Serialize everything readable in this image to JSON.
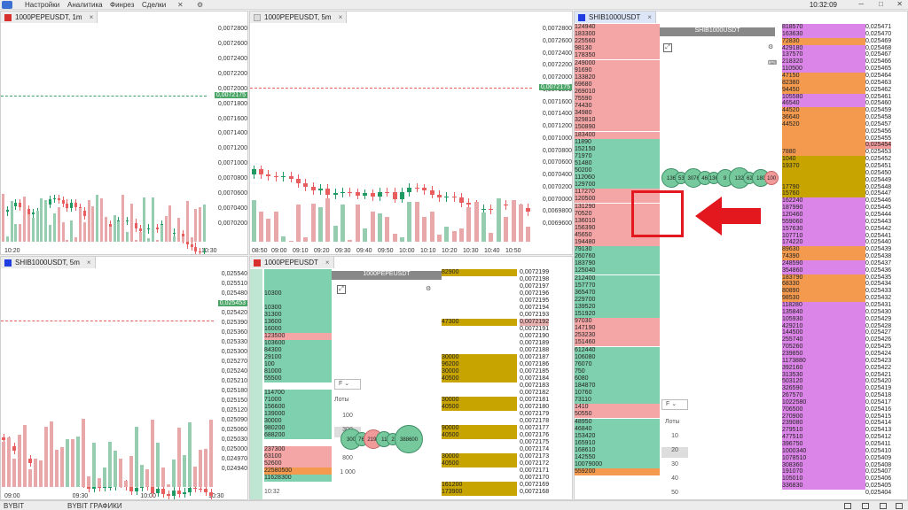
{
  "menu": {
    "items": [
      "Настройки",
      "Аналитика",
      "Финрез",
      "Сделки"
    ],
    "clock": "10:32:09",
    "window": [
      "─",
      "□",
      "✕"
    ]
  },
  "colors": {
    "green": "#1e9a62",
    "red": "#e85d5d",
    "vol_green": "#96cdb1",
    "vol_red": "#e8a8aa",
    "ask_bg": "#f4a6a6",
    "bid_bg": "#7fd0ae",
    "large_bid": "#c7a400",
    "orange": "#f39a4e",
    "violet": "#dc85e8"
  },
  "panels": {
    "chart1": {
      "title": "1000PEPEUSDT, 1m",
      "close": "×",
      "prices": [
        "0,0072800",
        "0,0072600",
        "0,0072400",
        "0,0072200",
        "0,0072000",
        "0,0071800",
        "0,0071600",
        "0,0071400",
        "0,0071200",
        "0,0071000",
        "0,0070800",
        "0,0070600",
        "0,0070400",
        "0,0070200"
      ],
      "current": "0,0072175",
      "times": [
        "10:20",
        "10:30"
      ]
    },
    "chart2": {
      "title": "1000PEPEUSDT, 5m",
      "close": "×",
      "prices": [
        "0,0072800",
        "0,0072600",
        "0,0072400",
        "0,0072200",
        "0,0072000",
        "0,0071800",
        "0,0071600",
        "0,0071400",
        "0,0071200",
        "0,0071000",
        "0,0070800",
        "0,0070600",
        "0,0070400",
        "0,0070200",
        "0,0070000",
        "0,0069800",
        "0,0069600"
      ],
      "current": "0,0072175",
      "times": [
        "08:50",
        "09:00",
        "09:10",
        "09:20",
        "09:30",
        "09:40",
        "09:50",
        "10:00",
        "10:10",
        "10:20",
        "10:30",
        "10:40",
        "10:50"
      ]
    },
    "chart3": {
      "title": "SHIB1000USDT, 5m",
      "close": "×",
      "prices": [
        "0,025540",
        "0,025510",
        "0,025480",
        "0,025453",
        "0,025420",
        "0,025390",
        "0,025360",
        "0,025330",
        "0,025300",
        "0,025270",
        "0,025240",
        "0,025210",
        "0,025180",
        "0,025150",
        "0,025120",
        "0,025090",
        "0,025060",
        "0,025030",
        "0,025000",
        "0,024970",
        "0,024940"
      ],
      "current": "0,025453",
      "times": [
        "09:00",
        "09:30",
        "10:00",
        "10:30"
      ]
    },
    "dom1": {
      "title": "1000PEPEUSDT",
      "header": "1000PEPEUSDT",
      "close": "×",
      "lots_label": "Лоты",
      "filter": "F",
      "lots": [
        "100",
        "300",
        "500",
        "800",
        "1 000"
      ],
      "selected_lot": "300",
      "time": "10:32",
      "left_sizes": [
        {
          "v": "",
          "t": "g"
        },
        {
          "v": "",
          "t": "g"
        },
        {
          "v": "",
          "t": "g"
        },
        {
          "v": "10300",
          "t": "g"
        },
        {
          "v": "",
          "t": "g"
        },
        {
          "v": "10300",
          "t": "g"
        },
        {
          "v": "31300",
          "t": "g"
        },
        {
          "v": "13600",
          "t": "g"
        },
        {
          "v": "16000",
          "t": "g"
        },
        {
          "v": "123500",
          "t": "r"
        },
        {
          "v": "103600",
          "t": "g"
        },
        {
          "v": "84300",
          "t": "g"
        },
        {
          "v": "29100",
          "t": "g"
        },
        {
          "v": "100",
          "t": "g"
        },
        {
          "v": "81000",
          "t": "g"
        },
        {
          "v": "55500",
          "t": "g"
        },
        {
          "v": "",
          "t": "w"
        },
        {
          "v": "114700",
          "t": "g"
        },
        {
          "v": "71000",
          "t": "g"
        },
        {
          "v": "156600",
          "t": "g"
        },
        {
          "v": "139000",
          "t": "g"
        },
        {
          "v": "30000",
          "t": "g"
        },
        {
          "v": "980200",
          "t": "g"
        },
        {
          "v": "688200",
          "t": "g"
        },
        {
          "v": "",
          "t": "w"
        },
        {
          "v": "237300",
          "t": "r"
        },
        {
          "v": "63100",
          "t": "r"
        },
        {
          "v": "52600",
          "t": "r"
        },
        {
          "v": "22580500",
          "t": "o"
        },
        {
          "v": "11628300",
          "t": "g"
        }
      ],
      "right_sizes": [
        {
          "v": "82900",
          "t": "y"
        },
        {
          "v": "",
          "t": "w"
        },
        {
          "v": "",
          "t": "w"
        },
        {
          "v": "",
          "t": "w"
        },
        {
          "v": "",
          "t": "w"
        },
        {
          "v": "",
          "t": "w"
        },
        {
          "v": "",
          "t": "w"
        },
        {
          "v": "47300",
          "t": "y"
        },
        {
          "v": "",
          "t": "w"
        },
        {
          "v": "",
          "t": "w"
        },
        {
          "v": "",
          "t": "w"
        },
        {
          "v": "",
          "t": "w"
        },
        {
          "v": "30000",
          "t": "y"
        },
        {
          "v": "96200",
          "t": "y"
        },
        {
          "v": "30000",
          "t": "y"
        },
        {
          "v": "40500",
          "t": "y"
        },
        {
          "v": "",
          "t": "w"
        },
        {
          "v": "",
          "t": "w"
        },
        {
          "v": "30000",
          "t": "y"
        },
        {
          "v": "40500",
          "t": "y"
        },
        {
          "v": "",
          "t": "w"
        },
        {
          "v": "",
          "t": "w"
        },
        {
          "v": "90000",
          "t": "y"
        },
        {
          "v": "40500",
          "t": "y"
        },
        {
          "v": "",
          "t": "w"
        },
        {
          "v": "",
          "t": "w"
        },
        {
          "v": "30000",
          "t": "y"
        },
        {
          "v": "40500",
          "t": "y"
        },
        {
          "v": "",
          "t": "w"
        },
        {
          "v": "",
          "t": "w"
        },
        {
          "v": "161200",
          "t": "y"
        },
        {
          "v": "173900",
          "t": "y"
        }
      ],
      "prices": [
        "0,0072199",
        "0,0072198",
        "0,0072197",
        "0,0072196",
        "0,0072195",
        "0,0072194",
        "0,0072193",
        "0,0072192",
        "0,0072191",
        "0,0072190",
        "0,0072189",
        "0,0072188",
        "0,0072187",
        "0,0072186",
        "0,0072185",
        "0,0072184",
        "0,0072183",
        "0,0072182",
        "0,0072181",
        "0,0072180",
        "0,0072179",
        "0,0072178",
        "0,0072177",
        "0,0072176",
        "0,0072175",
        "0,0072174",
        "0,0072173",
        "0,0072172",
        "0,0072171",
        "0,0072170",
        "0,0072169",
        "0,0072168"
      ],
      "bubbles": [
        {
          "label": "300",
          "type": "g"
        },
        {
          "label": "76",
          "type": "g"
        },
        {
          "label": "2190",
          "type": "r"
        },
        {
          "label": "11",
          "type": "g"
        },
        {
          "label": "2",
          "type": "g"
        },
        {
          "label": "388600",
          "type": "g"
        }
      ]
    },
    "dom2": {
      "title": "SHIB1000USDT",
      "header": "SHIB1000USDT",
      "close": "×",
      "lots_label": "Лоты",
      "filter": "F",
      "lots": [
        "10",
        "20",
        "30",
        "40",
        "50"
      ],
      "selected_lot": "20",
      "left_sizes": [
        "124940",
        "183300",
        "225560",
        "98130",
        "178350",
        "249000",
        "91690",
        "133820",
        "69680",
        "269010",
        "75590",
        "74430",
        "34980",
        "329810",
        "150890",
        "183400",
        "11890",
        "152150",
        "71970",
        "51480",
        "50200",
        "112060",
        "129700",
        "117270",
        "120500",
        "131290",
        "70520",
        "136010",
        "156390",
        "45650",
        "194480",
        "79130",
        "260760",
        "183790",
        "125040",
        "212400",
        "157770",
        "365470",
        "229700",
        "139520",
        "151920",
        "97030",
        "147190",
        "253230",
        "151460",
        "612440",
        "106080",
        "76070",
        "750",
        "6080",
        "184870",
        "10760",
        "73110",
        "1410",
        "50550",
        "48950",
        "46840",
        "153420",
        "165910",
        "168610",
        "142550",
        "10079000",
        "559200"
      ],
      "left_types": "rrrrrrrrrrrrrrrrgggggggrrrrrrrrggggggggggrrrrggggggggrrgggggggogg",
      "bubbles": [
        {
          "label": "136",
          "type": "g"
        },
        {
          "label": "53",
          "type": "g"
        },
        {
          "label": "3076",
          "type": "g"
        },
        {
          "label": "46",
          "type": "g"
        },
        {
          "label": "136",
          "type": "g"
        },
        {
          "label": "9",
          "type": "g"
        },
        {
          "label": "132",
          "type": "g"
        },
        {
          "label": "62",
          "type": "g"
        },
        {
          "label": "180",
          "type": "g"
        },
        {
          "label": "100",
          "type": "r"
        }
      ],
      "right_sizes": [
        "818570",
        "163630",
        "72830",
        "429180",
        "137570",
        "218320",
        "110500",
        "47150",
        "82380",
        "94450",
        "105580",
        "46540",
        "44520",
        "36640",
        "44520",
        "",
        "",
        "",
        "7880",
        "1040",
        "19370",
        "",
        "",
        "17790",
        "15760",
        "162240",
        "187990",
        "120460",
        "559060",
        "157630",
        "107710",
        "174220",
        "89630",
        "74390",
        "248590",
        "354860",
        "183790",
        "68330",
        "80890",
        "98530",
        "118280",
        "135840",
        "105930",
        "429210",
        "144500",
        "255740",
        "705260",
        "239850",
        "1173880",
        "392160",
        "313530",
        "503120",
        "326590",
        "267570",
        "1022580",
        "706500",
        "270900",
        "239080",
        "279510",
        "477510",
        "396750",
        "1000340",
        "1078510",
        "308360",
        "191070",
        "105010",
        "336830"
      ],
      "right_types": "vvovvvvooovvoooooooyyyyyyvvvvvvvoovvoooovvvvvvvvvvvvvvvvvvvvvvvvvvvvvvv",
      "right_prices": [
        "0,025471",
        "0,025470",
        "0,025469",
        "0,025468",
        "0,025467",
        "0,025466",
        "0,025465",
        "0,025464",
        "0,025463",
        "0,025462",
        "0,025461",
        "0,025460",
        "0,025459",
        "0,025458",
        "0,025457",
        "0,025456",
        "0,025455",
        "0,025454",
        "0,025453",
        "0,025452",
        "0,025451",
        "0,025450",
        "0,025449",
        "0,025448",
        "0,025447",
        "0,025446",
        "0,025445",
        "0,025444",
        "0,025443",
        "0,025442",
        "0,025441",
        "0,025440",
        "0,025439",
        "0,025438",
        "0,025437",
        "0,025436",
        "0,025435",
        "0,025434",
        "0,025433",
        "0,025432",
        "0,025431",
        "0,025430",
        "0,025429",
        "0,025428",
        "0,025427",
        "0,025426",
        "0,025425",
        "0,025424",
        "0,025423",
        "0,025422",
        "0,025421",
        "0,025420",
        "0,025419",
        "0,025418",
        "0,025417",
        "0,025416",
        "0,025415",
        "0,025414",
        "0,025413",
        "0,025412",
        "0,025411",
        "0,025410",
        "0,025409",
        "0,025408",
        "0,025407",
        "0,025406",
        "0,025405",
        "0,025404"
      ]
    }
  },
  "footer": {
    "tabs": [
      "BYBIT",
      "BYBIT ГРАФИКИ"
    ]
  }
}
